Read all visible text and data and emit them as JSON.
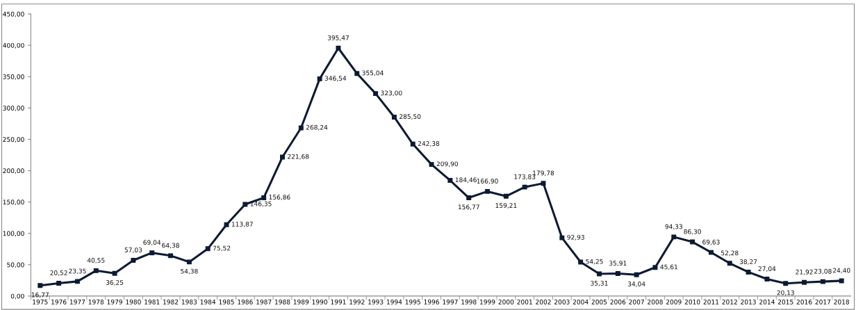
{
  "chart_data": {
    "type": "line",
    "categories": [
      "1975",
      "1976",
      "1977",
      "1978",
      "1979",
      "1980",
      "1981",
      "1982",
      "1983",
      "1984",
      "1985",
      "1986",
      "1987",
      "1988",
      "1989",
      "1990",
      "1991",
      "1992",
      "1993",
      "1994",
      "1995",
      "1996",
      "1997",
      "1998",
      "1999",
      "2000",
      "2001",
      "2002",
      "2003",
      "2004",
      "2005",
      "2006",
      "2007",
      "2008",
      "2009",
      "2010",
      "2011",
      "2012",
      "2013",
      "2014",
      "2015",
      "2016",
      "2017",
      "2018"
    ],
    "series": [
      {
        "color": "#0d1a33",
        "values": [
          16.77,
          20.52,
          23.35,
          40.55,
          36.25,
          57.03,
          69.04,
          64.38,
          54.38,
          75.52,
          113.87,
          146.35,
          156.86,
          221.68,
          268.24,
          346.54,
          395.47,
          355.04,
          323.0,
          285.5,
          242.38,
          209.9,
          184.46,
          156.77,
          166.9,
          159.21,
          173.83,
          179.78,
          92.93,
          54.25,
          35.31,
          35.91,
          34.04,
          45.61,
          94.33,
          86.3,
          69.63,
          52.28,
          38.27,
          27.04,
          20.13,
          21.92,
          23.08,
          24.4
        ],
        "value_labels": [
          "16,77",
          "20,52",
          "23,35",
          "40,55",
          "36,25",
          "57,03",
          "69,04",
          "64,38",
          "54,38",
          "75,52",
          "113,87",
          "146,35",
          "156,86",
          "221,68",
          "268,24",
          "346,54",
          "395,47",
          "355,04",
          "323,00",
          "285,50",
          "242,38",
          "209,90",
          "184,46",
          "156,77",
          "166,90",
          "159,21",
          "173,83",
          "179,78",
          "92,93",
          "54,25",
          "35,31",
          "35,91",
          "34,04",
          "45,61",
          "94,33",
          "86,30",
          "69,63",
          "52,28",
          "38,27",
          "27,04",
          "20,13",
          "21,92",
          "23,08",
          "24,40"
        ]
      }
    ],
    "ylim": [
      0,
      450
    ],
    "yticks": [
      {
        "value": 0,
        "label": "0,00"
      },
      {
        "value": 50,
        "label": "50,00"
      },
      {
        "value": 100,
        "label": "100,00"
      },
      {
        "value": 150,
        "label": "150,00"
      },
      {
        "value": 200,
        "label": "200,00"
      },
      {
        "value": 250,
        "label": "250,00"
      },
      {
        "value": 300,
        "label": "300,00"
      },
      {
        "value": 350,
        "label": "350,00"
      },
      {
        "value": 400,
        "label": "400,00"
      },
      {
        "value": 450,
        "label": "450,00"
      }
    ],
    "marker": "square",
    "line_style": "solid",
    "grid": false,
    "legend": false
  }
}
